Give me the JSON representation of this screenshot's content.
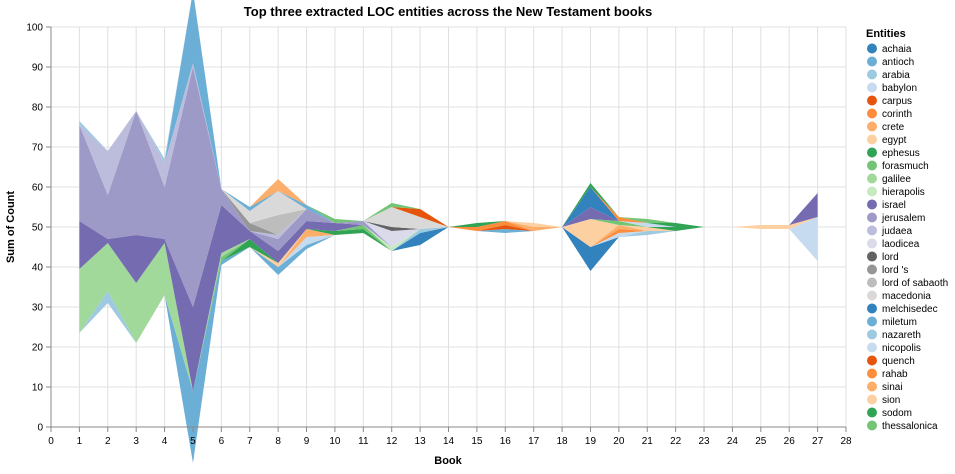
{
  "chart_data": {
    "type": "area",
    "title": "Top three extracted LOC entities across the New Testament books",
    "xlabel": "Book",
    "ylabel": "Sum of Count",
    "xlim": [
      0,
      28
    ],
    "ylim": [
      0,
      100
    ],
    "x_ticks": [
      "0",
      "1",
      "2",
      "3",
      "4",
      "5",
      "6",
      "7",
      "8",
      "9",
      "10",
      "11",
      "12",
      "13",
      "14",
      "15",
      "16",
      "17",
      "18",
      "19",
      "20",
      "21",
      "22",
      "23",
      "24",
      "25",
      "26",
      "27",
      "28"
    ],
    "y_ticks": [
      "0",
      "10",
      "20",
      "30",
      "40",
      "50",
      "60",
      "70",
      "80",
      "90",
      "100"
    ],
    "grid": true,
    "stacked": "center",
    "legend": {
      "title": "Entities",
      "placement": "right"
    },
    "entities": [
      {
        "name": "achaia",
        "color": "#3182bd"
      },
      {
        "name": "antioch",
        "color": "#6baed6"
      },
      {
        "name": "arabia",
        "color": "#9ecae1"
      },
      {
        "name": "babylon",
        "color": "#c6dbef"
      },
      {
        "name": "carpus",
        "color": "#e6550d"
      },
      {
        "name": "corinth",
        "color": "#fd8d3c"
      },
      {
        "name": "crete",
        "color": "#fdae6b"
      },
      {
        "name": "egypt",
        "color": "#fdd0a2"
      },
      {
        "name": "ephesus",
        "color": "#31a354"
      },
      {
        "name": "forasmuch",
        "color": "#74c476"
      },
      {
        "name": "galilee",
        "color": "#a1d99b"
      },
      {
        "name": "hierapolis",
        "color": "#c7e9c0"
      },
      {
        "name": "israel",
        "color": "#756bb1"
      },
      {
        "name": "jerusalem",
        "color": "#9e9ac8"
      },
      {
        "name": "judaea",
        "color": "#bcbddc"
      },
      {
        "name": "laodicea",
        "color": "#dadaeb"
      },
      {
        "name": "lord",
        "color": "#636363"
      },
      {
        "name": "lord 's",
        "color": "#969696"
      },
      {
        "name": "lord of sabaoth",
        "color": "#bdbdbd"
      },
      {
        "name": "macedonia",
        "color": "#d9d9d9"
      },
      {
        "name": "melchisedec",
        "color": "#3182bd"
      },
      {
        "name": "miletum",
        "color": "#6baed6"
      },
      {
        "name": "nazareth",
        "color": "#9ecae1"
      },
      {
        "name": "nicopolis",
        "color": "#c6dbef"
      },
      {
        "name": "quench",
        "color": "#e6550d"
      },
      {
        "name": "rahab",
        "color": "#fd8d3c"
      },
      {
        "name": "sinai",
        "color": "#fdae6b"
      },
      {
        "name": "sion",
        "color": "#fdd0a2"
      },
      {
        "name": "sodom",
        "color": "#31a354"
      },
      {
        "name": "thessalonica",
        "color": "#74c476"
      }
    ],
    "series": [
      {
        "name": "achaia",
        "values": [
          [
            13,
            3
          ],
          [
            19,
            6
          ]
        ]
      },
      {
        "name": "antioch",
        "values": [
          [
            5,
            18
          ],
          [
            6,
            1
          ],
          [
            8,
            2
          ],
          [
            9,
            1
          ],
          [
            16,
            1
          ]
        ]
      },
      {
        "name": "arabia",
        "values": [
          [
            2,
            3
          ],
          [
            13,
            1
          ],
          [
            21,
            1
          ]
        ]
      },
      {
        "name": "babylon",
        "values": [
          [
            9,
            2
          ],
          [
            20,
            1
          ],
          [
            27,
            11
          ]
        ]
      },
      {
        "name": "carpus",
        "values": [
          [
            16,
            1
          ]
        ]
      },
      {
        "name": "corinth",
        "values": [
          [
            15,
            1
          ],
          [
            16,
            1
          ],
          [
            20,
            1
          ]
        ]
      },
      {
        "name": "crete",
        "values": [
          [
            9,
            2
          ],
          [
            17,
            1
          ],
          [
            20,
            1
          ]
        ]
      },
      {
        "name": "egypt",
        "values": [
          [
            8,
            1
          ],
          [
            19,
            7
          ],
          [
            21,
            1
          ],
          [
            25,
            1
          ],
          [
            26,
            1
          ]
        ]
      },
      {
        "name": "ephesus",
        "values": [
          [
            7,
            2
          ],
          [
            10,
            1
          ],
          [
            11,
            1
          ],
          [
            15,
            1
          ],
          [
            22,
            1
          ]
        ]
      },
      {
        "name": "forasmuch",
        "values": [
          [
            6,
            1
          ],
          [
            11,
            1
          ],
          [
            20,
            1
          ]
        ]
      },
      {
        "name": "galilee",
        "values": [
          [
            1,
            16
          ],
          [
            2,
            12
          ],
          [
            3,
            15
          ],
          [
            4,
            13
          ],
          [
            6,
            1
          ]
        ]
      },
      {
        "name": "hierapolis",
        "values": [
          [
            12,
            1
          ]
        ]
      },
      {
        "name": "israel",
        "values": [
          [
            1,
            12
          ],
          [
            2,
            1
          ],
          [
            3,
            12
          ],
          [
            4,
            1
          ],
          [
            5,
            21
          ],
          [
            6,
            12
          ],
          [
            7,
            2
          ],
          [
            8,
            3
          ],
          [
            9,
            2
          ],
          [
            10,
            2
          ],
          [
            19,
            3
          ],
          [
            27,
            6
          ]
        ]
      },
      {
        "name": "jerusalem",
        "values": [
          [
            1,
            24
          ],
          [
            2,
            11
          ],
          [
            3,
            31
          ],
          [
            4,
            13
          ],
          [
            5,
            60
          ],
          [
            6,
            4
          ],
          [
            8,
            3
          ],
          [
            9,
            3
          ],
          [
            11,
            1
          ]
        ]
      },
      {
        "name": "judaea",
        "values": [
          [
            2,
            11
          ],
          [
            4,
            6
          ],
          [
            5,
            1
          ],
          [
            8,
            1
          ]
        ]
      },
      {
        "name": "laodicea",
        "values": [
          [
            12,
            4
          ]
        ]
      },
      {
        "name": "lord",
        "values": [
          [
            12,
            1
          ]
        ]
      },
      {
        "name": "lord 's",
        "values": [
          [
            7,
            2
          ]
        ]
      },
      {
        "name": "lord of sabaoth",
        "values": [
          [
            8,
            5
          ]
        ]
      },
      {
        "name": "macedonia",
        "values": [
          [
            7,
            3
          ],
          [
            8,
            6
          ],
          [
            12,
            5
          ],
          [
            13,
            3
          ]
        ]
      },
      {
        "name": "melchisedec",
        "values": [
          [
            19,
            5
          ]
        ]
      },
      {
        "name": "miletum",
        "values": [
          [
            5,
            18
          ],
          [
            7,
            1
          ],
          [
            9,
            1
          ]
        ]
      },
      {
        "name": "nazareth",
        "values": [
          [
            1,
            1
          ],
          [
            4,
            1
          ]
        ]
      },
      {
        "name": "nicopolis",
        "values": [
          [
            21,
            1
          ]
        ]
      },
      {
        "name": "quench",
        "values": [
          [
            13,
            2
          ]
        ]
      },
      {
        "name": "rahab",
        "values": [
          [
            20,
            1
          ]
        ]
      },
      {
        "name": "sinai",
        "values": [
          [
            8,
            3
          ]
        ]
      },
      {
        "name": "sion",
        "values": [
          [
            17,
            1
          ]
        ]
      },
      {
        "name": "sodom",
        "values": [
          [
            19,
            1
          ],
          [
            22,
            1
          ]
        ]
      },
      {
        "name": "thessalonica",
        "values": [
          [
            10,
            1
          ],
          [
            12,
            1
          ],
          [
            21,
            1
          ]
        ]
      }
    ]
  }
}
